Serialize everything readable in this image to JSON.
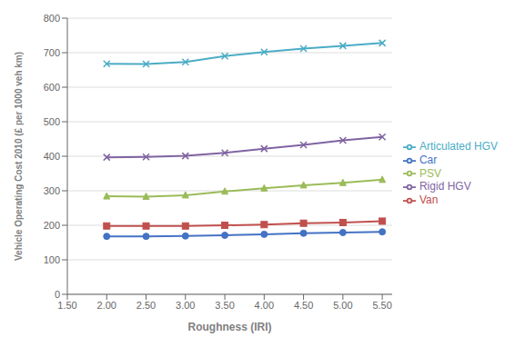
{
  "chart_data": {
    "type": "line",
    "xlabel": "Roughness (IRI)",
    "ylabel": "Vehicle Operating Cost 2010 (£ per 1000 veh km)",
    "x": [
      2.0,
      2.5,
      3.0,
      3.5,
      4.0,
      4.5,
      5.0,
      5.5
    ],
    "series": [
      {
        "name": "Car",
        "color": "#4472C4",
        "marker": "circle",
        "values": [
          168,
          168,
          169,
          171,
          174,
          177,
          179,
          181
        ]
      },
      {
        "name": "Van",
        "color": "#C0504D",
        "marker": "square",
        "values": [
          198,
          198,
          198,
          200,
          202,
          206,
          208,
          212
        ]
      },
      {
        "name": "PSV",
        "color": "#9BBB59",
        "marker": "triangle",
        "values": [
          284,
          283,
          287,
          298,
          307,
          316,
          323,
          332
        ]
      },
      {
        "name": "Rigid HGV",
        "color": "#8064A2",
        "marker": "x",
        "values": [
          397,
          398,
          401,
          410,
          422,
          433,
          446,
          456
        ]
      },
      {
        "name": "Articulated HGV",
        "color": "#4BACC6",
        "marker": "x",
        "values": [
          668,
          667,
          673,
          690,
          702,
          712,
          720,
          728
        ]
      }
    ],
    "xlim": [
      1.5,
      5.625
    ],
    "ylim": [
      0,
      800
    ],
    "xticks": [
      {
        "value": 1.5,
        "label": "1.50"
      },
      {
        "value": 2.0,
        "label": "2.00"
      },
      {
        "value": 2.5,
        "label": "2.50"
      },
      {
        "value": 3.0,
        "label": "3.00"
      },
      {
        "value": 3.5,
        "label": "3.50"
      },
      {
        "value": 4.0,
        "label": "4.00"
      },
      {
        "value": 4.5,
        "label": "4.50"
      },
      {
        "value": 5.0,
        "label": "5.00"
      },
      {
        "value": 5.5,
        "label": "5.50"
      }
    ],
    "yticks": [
      0,
      100,
      200,
      300,
      400,
      500,
      600,
      700,
      800
    ],
    "grid": true,
    "legend": "right"
  }
}
